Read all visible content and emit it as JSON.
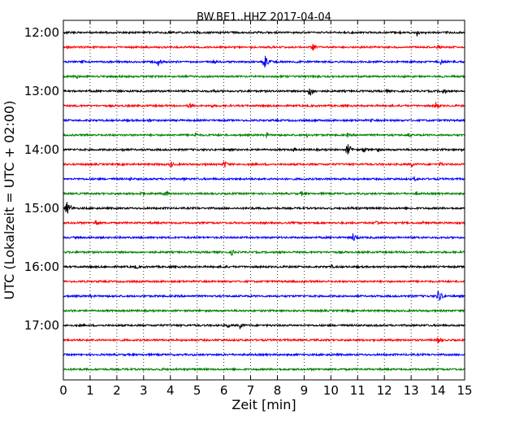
{
  "chart_data": {
    "type": "line",
    "title": "BW.BE1..HHZ 2017-04-04",
    "xlabel": "Zeit  [min]",
    "ylabel": "UTC (Lokalzeit = UTC + 02:00)",
    "xlim": [
      0,
      15
    ],
    "x_ticks": [
      0,
      1,
      2,
      3,
      4,
      5,
      6,
      7,
      8,
      9,
      10,
      11,
      12,
      13,
      14,
      15
    ],
    "y_tick_labels": [
      "12:00",
      "13:00",
      "14:00",
      "15:00",
      "16:00",
      "17:00"
    ],
    "y_tick_row_index": [
      0,
      4,
      8,
      12,
      16,
      20
    ],
    "grid": "vertical dotted",
    "trace_colors": [
      "#000000",
      "#ff0000",
      "#0000ff",
      "#008000"
    ],
    "row_interval_minutes": 15,
    "rows": [
      {
        "start": "12:00",
        "events": [
          {
            "t": 5.0,
            "a": 0.25
          },
          {
            "t": 13.2,
            "a": 0.55
          }
        ]
      },
      {
        "start": "12:15",
        "events": [
          {
            "t": 9.3,
            "a": 0.55
          },
          {
            "t": 14.0,
            "a": 0.4
          }
        ]
      },
      {
        "start": "12:30",
        "events": [
          {
            "t": 0.7,
            "a": 0.4
          },
          {
            "t": 3.5,
            "a": 0.7
          },
          {
            "t": 5.6,
            "a": 0.4
          },
          {
            "t": 7.5,
            "a": 1.0
          },
          {
            "t": 14.1,
            "a": 0.5
          }
        ]
      },
      {
        "start": "12:45",
        "events": [
          {
            "t": 0.5,
            "a": 0.35
          },
          {
            "t": 0.9,
            "a": 0.3
          }
        ]
      },
      {
        "start": "13:00",
        "events": [
          {
            "t": 5.6,
            "a": 0.35
          },
          {
            "t": 9.2,
            "a": 0.8
          },
          {
            "t": 12.1,
            "a": 0.35
          },
          {
            "t": 14.2,
            "a": 0.45
          }
        ]
      },
      {
        "start": "13:15",
        "events": [
          {
            "t": 4.7,
            "a": 0.55
          },
          {
            "t": 5.5,
            "a": 0.35
          },
          {
            "t": 13.9,
            "a": 0.6
          }
        ]
      },
      {
        "start": "13:30",
        "events": [
          {
            "t": 3.2,
            "a": 0.35
          },
          {
            "t": 9.4,
            "a": 0.3
          },
          {
            "t": 11.5,
            "a": 0.3
          }
        ]
      },
      {
        "start": "13:45",
        "events": [
          {
            "t": 4.9,
            "a": 0.5
          },
          {
            "t": 7.6,
            "a": 0.45
          },
          {
            "t": 9.1,
            "a": 0.35
          },
          {
            "t": 10.6,
            "a": 0.35
          },
          {
            "t": 12.9,
            "a": 0.45
          }
        ]
      },
      {
        "start": "14:00",
        "events": [
          {
            "t": 2.2,
            "a": 0.35
          },
          {
            "t": 8.6,
            "a": 0.35
          },
          {
            "t": 10.6,
            "a": 0.9
          },
          {
            "t": 11.2,
            "a": 0.6
          },
          {
            "t": 11.7,
            "a": 0.45
          },
          {
            "t": 14.9,
            "a": 0.3
          }
        ]
      },
      {
        "start": "14:15",
        "events": [
          {
            "t": 4.0,
            "a": 0.5
          },
          {
            "t": 6.0,
            "a": 0.6
          },
          {
            "t": 13.0,
            "a": 0.45
          },
          {
            "t": 14.1,
            "a": 0.35
          }
        ]
      },
      {
        "start": "14:30",
        "events": [
          {
            "t": 2.5,
            "a": 0.3
          },
          {
            "t": 4.5,
            "a": 0.3
          },
          {
            "t": 13.1,
            "a": 0.45
          }
        ]
      },
      {
        "start": "14:45",
        "events": [
          {
            "t": 2.9,
            "a": 0.5
          },
          {
            "t": 3.8,
            "a": 0.55
          },
          {
            "t": 8.9,
            "a": 0.35
          },
          {
            "t": 13.2,
            "a": 0.35
          }
        ]
      },
      {
        "start": "15:00",
        "events": [
          {
            "t": 0.1,
            "a": 1.0
          },
          {
            "t": 10.8,
            "a": 0.3
          }
        ]
      },
      {
        "start": "15:15",
        "events": [
          {
            "t": 1.2,
            "a": 0.55
          },
          {
            "t": 11.7,
            "a": 0.5
          },
          {
            "t": 13.4,
            "a": 0.35
          }
        ]
      },
      {
        "start": "15:30",
        "events": [
          {
            "t": 10.8,
            "a": 0.75
          }
        ]
      },
      {
        "start": "15:45",
        "events": [
          {
            "t": 6.3,
            "a": 0.45
          },
          {
            "t": 8.1,
            "a": 0.3
          }
        ]
      },
      {
        "start": "16:00",
        "events": [
          {
            "t": 2.7,
            "a": 0.4
          },
          {
            "t": 6.0,
            "a": 0.3
          },
          {
            "t": 10.0,
            "a": 0.35
          }
        ]
      },
      {
        "start": "16:15",
        "events": [
          {
            "t": 9.0,
            "a": 0.2
          }
        ]
      },
      {
        "start": "16:30",
        "events": [
          {
            "t": 1.0,
            "a": 0.25
          },
          {
            "t": 14.0,
            "a": 0.9
          }
        ]
      },
      {
        "start": "16:45",
        "events": [
          {
            "t": 0.3,
            "a": 0.3
          }
        ]
      },
      {
        "start": "17:00",
        "events": [
          {
            "t": 6.1,
            "a": 0.45
          },
          {
            "t": 6.6,
            "a": 0.55
          }
        ]
      },
      {
        "start": "17:15",
        "events": [
          {
            "t": 14.0,
            "a": 0.55
          }
        ]
      },
      {
        "start": "17:30",
        "events": []
      },
      {
        "start": "17:45",
        "events": [
          {
            "t": 3.7,
            "a": 0.3
          }
        ]
      }
    ]
  }
}
